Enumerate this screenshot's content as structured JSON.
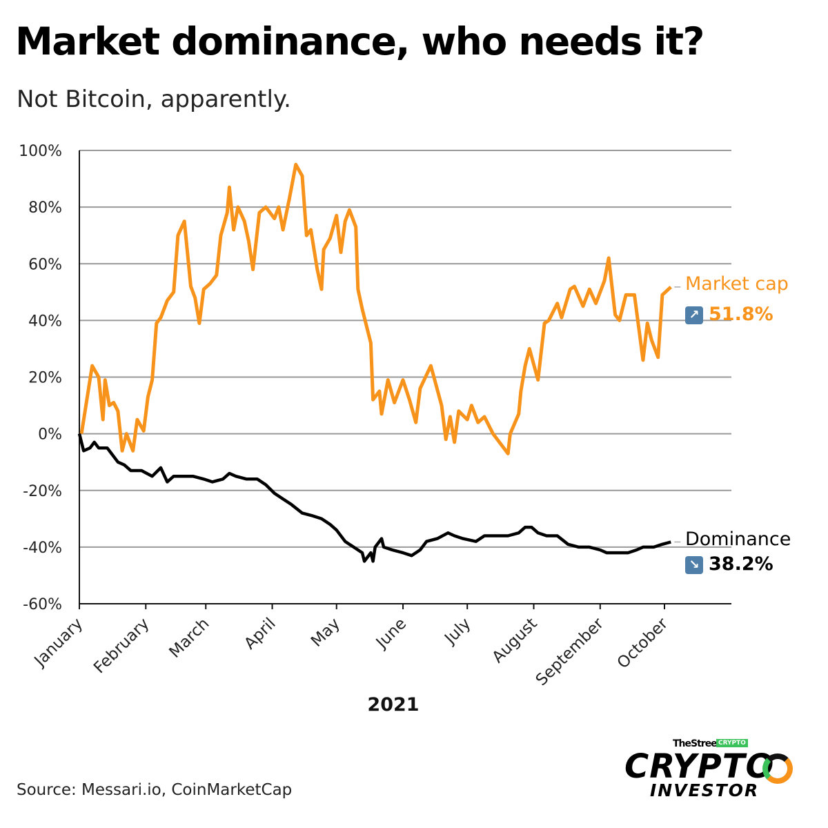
{
  "title": "Market dominance, who needs it?",
  "subtitle": "Not Bitcoin, apparently.",
  "source": "Source: Messari.io, CoinMarketCap",
  "logo": {
    "brand": "TheStreet",
    "badge": "CRYPTO",
    "line1": "CRYPTO",
    "line2": "INVESTOR"
  },
  "colors": {
    "market_cap": "#f7931a",
    "dominance": "#000000",
    "grid": "#999999",
    "arrow_box": "#4f7fa8"
  },
  "chart_data": {
    "type": "line",
    "xlabel": "2021",
    "ylabel": "",
    "ylim": [
      -60,
      100
    ],
    "xlim": [
      "2021-01-01",
      "2021-10-31"
    ],
    "grid": true,
    "yticks": [
      "100%",
      "80%",
      "60%",
      "40%",
      "20%",
      "0%",
      "-20%",
      "-40%",
      "-60%"
    ],
    "ytick_values": [
      100,
      80,
      60,
      40,
      20,
      0,
      -20,
      -40,
      -60
    ],
    "xticks": [
      "January",
      "February",
      "March",
      "April",
      "May",
      "June",
      "July",
      "August",
      "September",
      "October"
    ],
    "xtick_dates": [
      "2021-01-01",
      "2021-02-01",
      "2021-03-01",
      "2021-04-01",
      "2021-05-01",
      "2021-06-01",
      "2021-07-01",
      "2021-08-01",
      "2021-09-01",
      "2021-10-01"
    ],
    "series": [
      {
        "name": "Market cap",
        "end_label": "51.8%",
        "end_icon": "arrow-up-right-icon",
        "points": [
          [
            "2021-01-02",
            0
          ],
          [
            "2021-01-07",
            24
          ],
          [
            "2021-01-10",
            20
          ],
          [
            "2021-01-12",
            5
          ],
          [
            "2021-01-13",
            19
          ],
          [
            "2021-01-15",
            10
          ],
          [
            "2021-01-17",
            11
          ],
          [
            "2021-01-19",
            8
          ],
          [
            "2021-01-21",
            -6
          ],
          [
            "2021-01-23",
            0
          ],
          [
            "2021-01-26",
            -6
          ],
          [
            "2021-01-28",
            5
          ],
          [
            "2021-01-31",
            1
          ],
          [
            "2021-02-02",
            13
          ],
          [
            "2021-02-04",
            19
          ],
          [
            "2021-02-06",
            39
          ],
          [
            "2021-02-08",
            41
          ],
          [
            "2021-02-11",
            47
          ],
          [
            "2021-02-14",
            50
          ],
          [
            "2021-02-16",
            70
          ],
          [
            "2021-02-19",
            75
          ],
          [
            "2021-02-22",
            52
          ],
          [
            "2021-02-24",
            48
          ],
          [
            "2021-02-26",
            39
          ],
          [
            "2021-02-28",
            51
          ],
          [
            "2021-03-03",
            53
          ],
          [
            "2021-03-06",
            56
          ],
          [
            "2021-03-08",
            70
          ],
          [
            "2021-03-11",
            78
          ],
          [
            "2021-03-12",
            87
          ],
          [
            "2021-03-14",
            72
          ],
          [
            "2021-03-16",
            80
          ],
          [
            "2021-03-19",
            75
          ],
          [
            "2021-03-21",
            68
          ],
          [
            "2021-03-23",
            58
          ],
          [
            "2021-03-26",
            78
          ],
          [
            "2021-03-29",
            80
          ],
          [
            "2021-04-02",
            76
          ],
          [
            "2021-04-04",
            80
          ],
          [
            "2021-04-06",
            72
          ],
          [
            "2021-04-09",
            83
          ],
          [
            "2021-04-12",
            95
          ],
          [
            "2021-04-15",
            91
          ],
          [
            "2021-04-17",
            70
          ],
          [
            "2021-04-19",
            72
          ],
          [
            "2021-04-22",
            58
          ],
          [
            "2021-04-24",
            51
          ],
          [
            "2021-04-25",
            65
          ],
          [
            "2021-04-28",
            69
          ],
          [
            "2021-05-01",
            77
          ],
          [
            "2021-05-03",
            64
          ],
          [
            "2021-05-05",
            75
          ],
          [
            "2021-05-07",
            79
          ],
          [
            "2021-05-10",
            73
          ],
          [
            "2021-05-11",
            51
          ],
          [
            "2021-05-13",
            44
          ],
          [
            "2021-05-17",
            32
          ],
          [
            "2021-05-18",
            12
          ],
          [
            "2021-05-21",
            15
          ],
          [
            "2021-05-22",
            7
          ],
          [
            "2021-05-25",
            19
          ],
          [
            "2021-05-28",
            11
          ],
          [
            "2021-06-01",
            19
          ],
          [
            "2021-06-04",
            12
          ],
          [
            "2021-06-07",
            4
          ],
          [
            "2021-06-09",
            16
          ],
          [
            "2021-06-14",
            24
          ],
          [
            "2021-06-19",
            10
          ],
          [
            "2021-06-21",
            -2
          ],
          [
            "2021-06-23",
            6
          ],
          [
            "2021-06-25",
            -3
          ],
          [
            "2021-06-27",
            8
          ],
          [
            "2021-07-01",
            5
          ],
          [
            "2021-07-03",
            10
          ],
          [
            "2021-07-06",
            4
          ],
          [
            "2021-07-09",
            6
          ],
          [
            "2021-07-13",
            0
          ],
          [
            "2021-07-17",
            -4
          ],
          [
            "2021-07-20",
            -7
          ],
          [
            "2021-07-21",
            0
          ],
          [
            "2021-07-25",
            7
          ],
          [
            "2021-07-26",
            15
          ],
          [
            "2021-07-28",
            24
          ],
          [
            "2021-07-30",
            30
          ],
          [
            "2021-08-03",
            19
          ],
          [
            "2021-08-06",
            39
          ],
          [
            "2021-08-08",
            40
          ],
          [
            "2021-08-12",
            46
          ],
          [
            "2021-08-14",
            41
          ],
          [
            "2021-08-18",
            51
          ],
          [
            "2021-08-20",
            52
          ],
          [
            "2021-08-24",
            45
          ],
          [
            "2021-08-27",
            51
          ],
          [
            "2021-08-30",
            46
          ],
          [
            "2021-09-03",
            54
          ],
          [
            "2021-09-05",
            62
          ],
          [
            "2021-09-08",
            42
          ],
          [
            "2021-09-10",
            40
          ],
          [
            "2021-09-13",
            49
          ],
          [
            "2021-09-17",
            49
          ],
          [
            "2021-09-21",
            26
          ],
          [
            "2021-09-23",
            39
          ],
          [
            "2021-09-25",
            33
          ],
          [
            "2021-09-28",
            27
          ],
          [
            "2021-09-30",
            49
          ],
          [
            "2021-10-04",
            51.8
          ]
        ]
      },
      {
        "name": "Dominance",
        "end_label": "38.2%",
        "end_icon": "arrow-down-right-icon",
        "points": [
          [
            "2021-01-01",
            0
          ],
          [
            "2021-01-03",
            -6
          ],
          [
            "2021-01-06",
            -5
          ],
          [
            "2021-01-08",
            -3
          ],
          [
            "2021-01-10",
            -5
          ],
          [
            "2021-01-14",
            -5
          ],
          [
            "2021-01-16",
            -7
          ],
          [
            "2021-01-19",
            -10
          ],
          [
            "2021-01-22",
            -11
          ],
          [
            "2021-01-25",
            -13
          ],
          [
            "2021-01-30",
            -13
          ],
          [
            "2021-02-04",
            -15
          ],
          [
            "2021-02-08",
            -12
          ],
          [
            "2021-02-11",
            -17
          ],
          [
            "2021-02-14",
            -15
          ],
          [
            "2021-02-18",
            -15
          ],
          [
            "2021-02-23",
            -15
          ],
          [
            "2021-02-28",
            -16
          ],
          [
            "2021-03-04",
            -17
          ],
          [
            "2021-03-09",
            -16
          ],
          [
            "2021-03-12",
            -14
          ],
          [
            "2021-03-15",
            -15
          ],
          [
            "2021-03-20",
            -16
          ],
          [
            "2021-03-25",
            -16
          ],
          [
            "2021-03-29",
            -18
          ],
          [
            "2021-04-02",
            -21
          ],
          [
            "2021-04-06",
            -23
          ],
          [
            "2021-04-10",
            -25
          ],
          [
            "2021-04-15",
            -28
          ],
          [
            "2021-04-20",
            -29
          ],
          [
            "2021-04-24",
            -30
          ],
          [
            "2021-04-28",
            -32
          ],
          [
            "2021-05-01",
            -34
          ],
          [
            "2021-05-05",
            -38
          ],
          [
            "2021-05-09",
            -40
          ],
          [
            "2021-05-13",
            -42
          ],
          [
            "2021-05-14",
            -45
          ],
          [
            "2021-05-17",
            -42
          ],
          [
            "2021-05-18",
            -45
          ],
          [
            "2021-05-19",
            -40
          ],
          [
            "2021-05-22",
            -37
          ],
          [
            "2021-05-23",
            -40
          ],
          [
            "2021-05-27",
            -41
          ],
          [
            "2021-06-01",
            -42
          ],
          [
            "2021-06-05",
            -43
          ],
          [
            "2021-06-09",
            -41
          ],
          [
            "2021-06-12",
            -38
          ],
          [
            "2021-06-17",
            -37
          ],
          [
            "2021-06-22",
            -35
          ],
          [
            "2021-06-25",
            -36
          ],
          [
            "2021-06-29",
            -37
          ],
          [
            "2021-07-05",
            -38
          ],
          [
            "2021-07-09",
            -36
          ],
          [
            "2021-07-14",
            -36
          ],
          [
            "2021-07-20",
            -36
          ],
          [
            "2021-07-25",
            -35
          ],
          [
            "2021-07-28",
            -33
          ],
          [
            "2021-07-31",
            -33
          ],
          [
            "2021-08-03",
            -35
          ],
          [
            "2021-08-07",
            -36
          ],
          [
            "2021-08-12",
            -36
          ],
          [
            "2021-08-17",
            -39
          ],
          [
            "2021-08-22",
            -40
          ],
          [
            "2021-08-27",
            -40
          ],
          [
            "2021-09-01",
            -41
          ],
          [
            "2021-09-04",
            -42
          ],
          [
            "2021-09-09",
            -42
          ],
          [
            "2021-09-14",
            -42
          ],
          [
            "2021-09-18",
            -41
          ],
          [
            "2021-09-21",
            -40
          ],
          [
            "2021-09-26",
            -40
          ],
          [
            "2021-09-30",
            -39
          ],
          [
            "2021-10-04",
            -38.2
          ]
        ]
      }
    ]
  }
}
